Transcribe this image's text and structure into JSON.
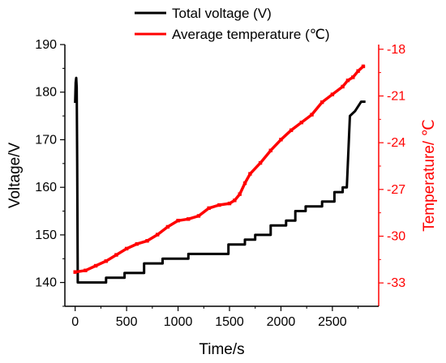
{
  "chart_data": {
    "type": "line",
    "xlabel": "Time/s",
    "ylabel": "Voltage/V",
    "y2label": "Temperature/ ℃",
    "xlim": [
      -100,
      2950
    ],
    "ylim": [
      135,
      190
    ],
    "y2lim": [
      -34.5,
      -17.7
    ],
    "xticks": [
      0,
      500,
      1000,
      1500,
      2000,
      2500
    ],
    "yticks": [
      140,
      150,
      160,
      170,
      180,
      190
    ],
    "y2ticks": [
      -33,
      -30,
      -27,
      -24,
      -21,
      -18
    ],
    "legend_position": "top-center",
    "grid": false,
    "colors": {
      "voltage": "#000000",
      "temperature": "#ff0000"
    },
    "series": [
      {
        "name": "Total voltage (V)",
        "axis": "left",
        "x": [
          0,
          5,
          10,
          15,
          20,
          25,
          25,
          300,
          300,
          480,
          480,
          670,
          670,
          850,
          850,
          1100,
          1100,
          1490,
          1490,
          1650,
          1650,
          1750,
          1750,
          1900,
          1900,
          2050,
          2050,
          2140,
          2140,
          2240,
          2240,
          2400,
          2400,
          2520,
          2520,
          2600,
          2600,
          2640,
          2670,
          2670,
          2720,
          2720,
          2780,
          2780,
          2810
        ],
        "y": [
          178,
          182,
          183,
          181,
          165,
          140,
          140,
          140,
          141,
          141,
          142,
          142,
          144,
          144,
          145,
          145,
          146,
          146,
          148,
          148,
          149,
          149,
          150,
          150,
          152,
          152,
          153,
          153,
          155,
          155,
          156,
          156,
          157,
          157,
          159,
          159,
          160,
          160,
          175,
          175,
          176,
          176,
          178,
          178,
          178
        ]
      },
      {
        "name": "Average temperature (℃)",
        "axis": "right",
        "x": [
          0,
          100,
          200,
          300,
          400,
          500,
          600,
          700,
          800,
          900,
          1000,
          1100,
          1200,
          1300,
          1400,
          1500,
          1550,
          1600,
          1650,
          1700,
          1800,
          1900,
          2000,
          2100,
          2200,
          2300,
          2400,
          2500,
          2600,
          2650,
          2700,
          2750,
          2800
        ],
        "y": [
          -32.3,
          -32.2,
          -31.9,
          -31.6,
          -31.2,
          -30.8,
          -30.5,
          -30.3,
          -29.9,
          -29.4,
          -29.0,
          -28.9,
          -28.7,
          -28.2,
          -28.0,
          -27.9,
          -27.7,
          -27.3,
          -26.6,
          -26.0,
          -25.3,
          -24.5,
          -23.8,
          -23.2,
          -22.7,
          -22.2,
          -21.4,
          -20.9,
          -20.4,
          -20.0,
          -19.8,
          -19.4,
          -19.1
        ]
      }
    ]
  }
}
